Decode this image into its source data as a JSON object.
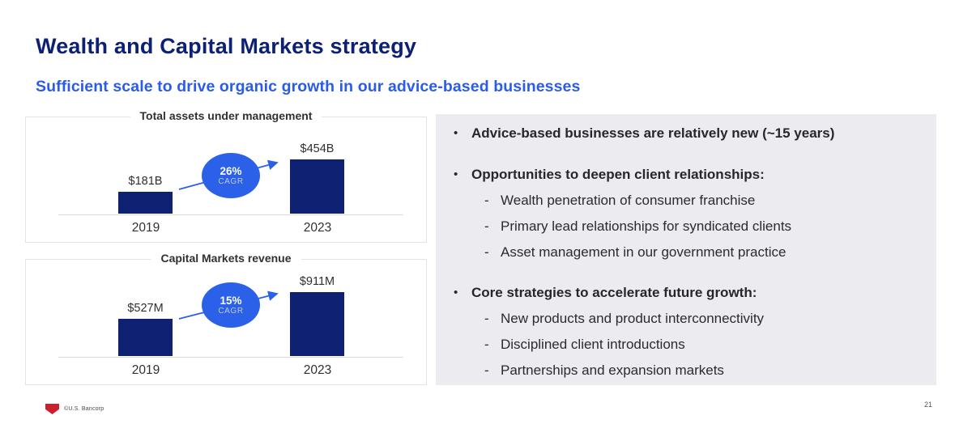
{
  "slide": {
    "title": "Wealth and Capital Markets strategy",
    "subtitle": "Sufficient scale to drive organic growth in our advice-based businesses",
    "footer_copyright": "©U.S. Bancorp",
    "page_number": "21"
  },
  "chart_data": [
    {
      "type": "bar",
      "title": "Total assets under management",
      "categories": [
        "2019",
        "2023"
      ],
      "values": [
        181,
        454
      ],
      "value_labels": [
        "$181B",
        "$454B"
      ],
      "cagr": "26%",
      "cagr_label": "CAGR",
      "unit": "USD billions",
      "bar_color": "#0f2173",
      "annotation": "arrow from 2019 bar to 2023 bar through CAGR badge"
    },
    {
      "type": "bar",
      "title": "Capital Markets revenue",
      "categories": [
        "2019",
        "2023"
      ],
      "values": [
        527,
        911
      ],
      "value_labels": [
        "$527M",
        "$911M"
      ],
      "cagr": "15%",
      "cagr_label": "CAGR",
      "unit": "USD millions",
      "bar_color": "#0f2173",
      "annotation": "arrow from 2019 bar to 2023 bar through CAGR badge"
    }
  ],
  "panel": {
    "bullet_marker": "•",
    "dash_marker": "-",
    "bullets": [
      {
        "label": "Advice-based businesses are relatively new (~15 years)",
        "sub": []
      },
      {
        "label": "Opportunities to deepen client relationships:",
        "sub": [
          "Wealth penetration of consumer franchise",
          "Primary lead relationships for syndicated clients",
          "Asset management in our government practice"
        ]
      },
      {
        "label": "Core strategies to accelerate future growth:",
        "sub": [
          "New products and product interconnectivity",
          "Disciplined client introductions",
          "Partnerships and expansion markets"
        ]
      }
    ]
  },
  "colors": {
    "title_navy": "#0c2074",
    "subtitle_blue": "#2b5ce9",
    "bar_navy": "#0f2173",
    "badge_blue": "#2a61e8",
    "panel_gray": "#ececf0",
    "border_gray": "#e3e3e6",
    "logo_red": "#cc2031"
  }
}
